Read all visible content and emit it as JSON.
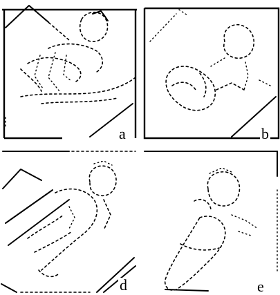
{
  "figure": {
    "panels": [
      {
        "id": "a",
        "label": "a"
      },
      {
        "id": "b",
        "label": "b"
      },
      {
        "id": "d",
        "label": "d"
      },
      {
        "id": "e",
        "label": "e"
      }
    ]
  }
}
